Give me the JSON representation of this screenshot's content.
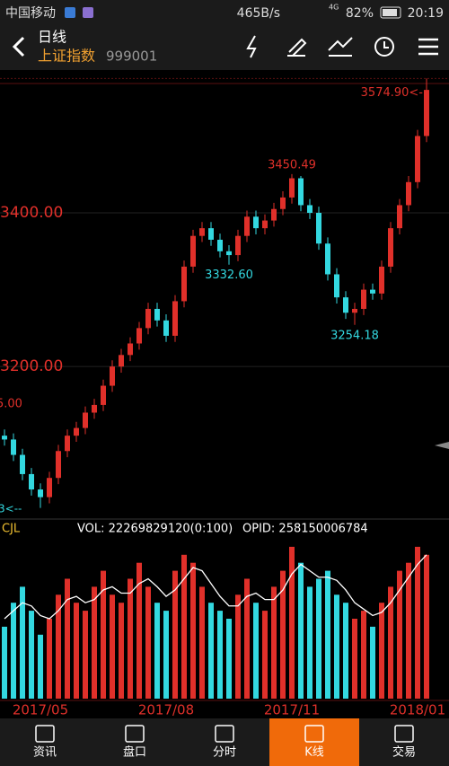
{
  "status_bar": {
    "carrier": "中国移动",
    "speed": "465B/s",
    "network": "4G",
    "battery": "82%",
    "time": "20:19"
  },
  "header": {
    "period": "日线",
    "name": "上证指数",
    "code": "999001"
  },
  "chart_data": {
    "type": "candlestick",
    "open": [
      3110,
      3105,
      3085,
      3060,
      3040,
      3030,
      3055,
      3090,
      3110,
      3120,
      3140,
      3150,
      3175,
      3200,
      3215,
      3230,
      3250,
      3275,
      3260,
      3240,
      3285,
      3330,
      3370,
      3380,
      3365,
      3350,
      3345,
      3370,
      3395,
      3380,
      3390,
      3405,
      3420,
      3445,
      3410,
      3400,
      3360,
      3320,
      3290,
      3270,
      3275,
      3300,
      3295,
      3330,
      3380,
      3410,
      3440,
      3500
    ],
    "close": [
      3105,
      3085,
      3060,
      3040,
      3030,
      3055,
      3090,
      3110,
      3120,
      3140,
      3150,
      3175,
      3200,
      3215,
      3230,
      3250,
      3275,
      3260,
      3240,
      3285,
      3330,
      3370,
      3380,
      3365,
      3350,
      3345,
      3370,
      3395,
      3380,
      3390,
      3405,
      3420,
      3445,
      3410,
      3400,
      3360,
      3320,
      3290,
      3270,
      3275,
      3300,
      3295,
      3330,
      3380,
      3410,
      3440,
      3500,
      3560
    ],
    "high": [
      3118,
      3113,
      3093,
      3068,
      3048,
      3063,
      3098,
      3118,
      3128,
      3148,
      3158,
      3183,
      3208,
      3223,
      3238,
      3258,
      3283,
      3283,
      3268,
      3293,
      3338,
      3378,
      3388,
      3388,
      3373,
      3358,
      3378,
      3403,
      3403,
      3398,
      3413,
      3428,
      3450.49,
      3448,
      3418,
      3408,
      3368,
      3328,
      3298,
      3283,
      3308,
      3308,
      3338,
      3388,
      3418,
      3448,
      3508,
      3574.9
    ],
    "low": [
      3097,
      3077,
      3052,
      3032,
      3016,
      3022,
      3047,
      3082,
      3102,
      3112,
      3132,
      3142,
      3167,
      3192,
      3207,
      3222,
      3242,
      3252,
      3232,
      3232,
      3277,
      3322,
      3362,
      3357,
      3342,
      3332.6,
      3337,
      3362,
      3372,
      3372,
      3382,
      3397,
      3412,
      3402,
      3392,
      3352,
      3312,
      3282,
      3262,
      3254.18,
      3267,
      3287,
      3287,
      3322,
      3372,
      3402,
      3432,
      3492
    ],
    "up_color": "#e0302a",
    "down_color": "#33d8e0",
    "ylim": [
      3005,
      3580
    ],
    "yticks": [
      {
        "value": 3400,
        "label": "3400.00"
      },
      {
        "value": 3200,
        "label": "3200.00"
      }
    ],
    "annotations": [
      {
        "value": 3574.9,
        "label": "3574.90<-"
      },
      {
        "value": 3450.49,
        "label": "3450.49"
      },
      {
        "value": 3332.6,
        "label": "3332.60"
      },
      {
        "value": 3254.18,
        "label": "3254.18"
      }
    ],
    "clipped_labels": [
      "5.00",
      "3<--"
    ],
    "xticks": [
      {
        "value": 4,
        "label": "2017/05"
      },
      {
        "value": 18,
        "label": "2017/08"
      },
      {
        "value": 32,
        "label": "2017/11"
      },
      {
        "value": 46,
        "label": "2018/01"
      }
    ],
    "volume": {
      "name": "CJL",
      "vol_label": "VOL: 22269829120(0:100)",
      "opid_label": "OPID: 258150006784",
      "values": [
        45,
        60,
        70,
        55,
        40,
        50,
        65,
        75,
        60,
        55,
        70,
        80,
        65,
        60,
        75,
        85,
        70,
        60,
        55,
        80,
        90,
        85,
        70,
        60,
        55,
        50,
        65,
        75,
        60,
        55,
        70,
        80,
        95,
        85,
        70,
        75,
        80,
        65,
        60,
        50,
        55,
        45,
        60,
        70,
        80,
        85,
        95,
        90
      ],
      "ma": [
        50,
        55,
        60,
        58,
        52,
        50,
        55,
        62,
        64,
        60,
        62,
        68,
        70,
        66,
        66,
        72,
        75,
        70,
        64,
        68,
        75,
        82,
        80,
        72,
        64,
        58,
        58,
        64,
        66,
        62,
        62,
        68,
        78,
        84,
        80,
        76,
        76,
        74,
        68,
        60,
        56,
        52,
        54,
        60,
        68,
        76,
        84,
        90
      ],
      "ylim": [
        0,
        100
      ]
    }
  },
  "tabs": [
    "资讯",
    "盘口",
    "分时",
    "K线",
    "交易"
  ]
}
